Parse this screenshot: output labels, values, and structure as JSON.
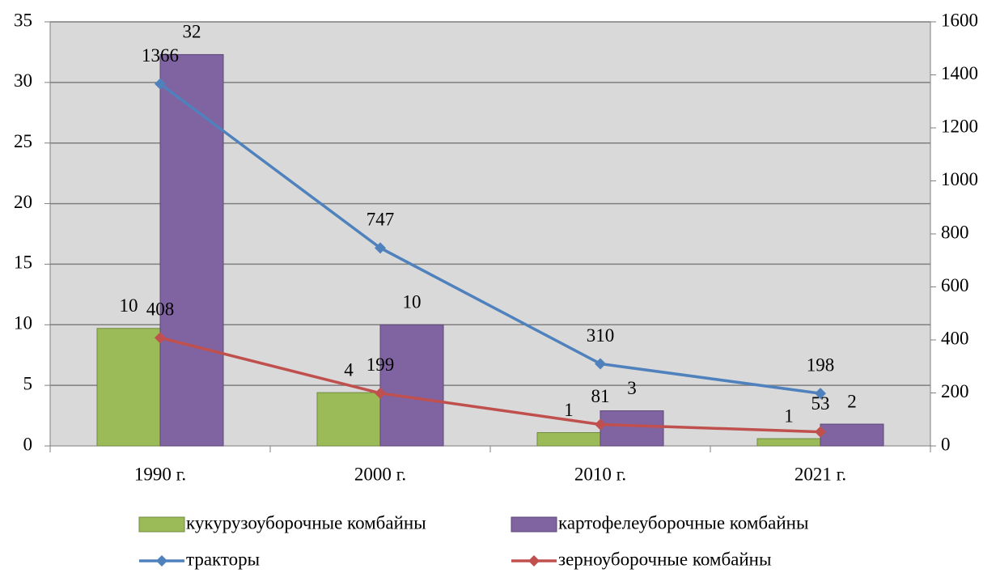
{
  "chart_data": {
    "type": "bar",
    "categories": [
      "1990 г.",
      "2000 г.",
      "2010 г.",
      "2021 г."
    ],
    "series": [
      {
        "name": "кукурузоуборочные комбайны",
        "type": "bar",
        "color": "#9bbb59",
        "values": [
          9.7,
          4.4,
          1.1,
          0.6
        ],
        "value_labels": [
          "10",
          "4",
          "1",
          "1"
        ]
      },
      {
        "name": "картофелеуборочные комбайны",
        "type": "bar",
        "color": "#8064a2",
        "values": [
          32.3,
          10.0,
          2.9,
          1.8
        ],
        "value_labels": [
          "32",
          "10",
          "3",
          "2"
        ]
      },
      {
        "name": "тракторы",
        "type": "line",
        "axis": "y2",
        "color": "#4f81bd",
        "values": [
          1366,
          747,
          310,
          198
        ]
      },
      {
        "name": "зерноуборочные комбайны",
        "type": "line",
        "axis": "y2",
        "color": "#c0504d",
        "values": [
          408,
          199,
          81,
          53
        ]
      }
    ],
    "ylim": [
      0,
      35
    ],
    "yticks": [
      0,
      5,
      10,
      15,
      20,
      25,
      30,
      35
    ],
    "y2lim": [
      0,
      1600
    ],
    "y2ticks": [
      0,
      200,
      400,
      600,
      800,
      1000,
      1200,
      1400,
      1600
    ],
    "grid": true
  }
}
